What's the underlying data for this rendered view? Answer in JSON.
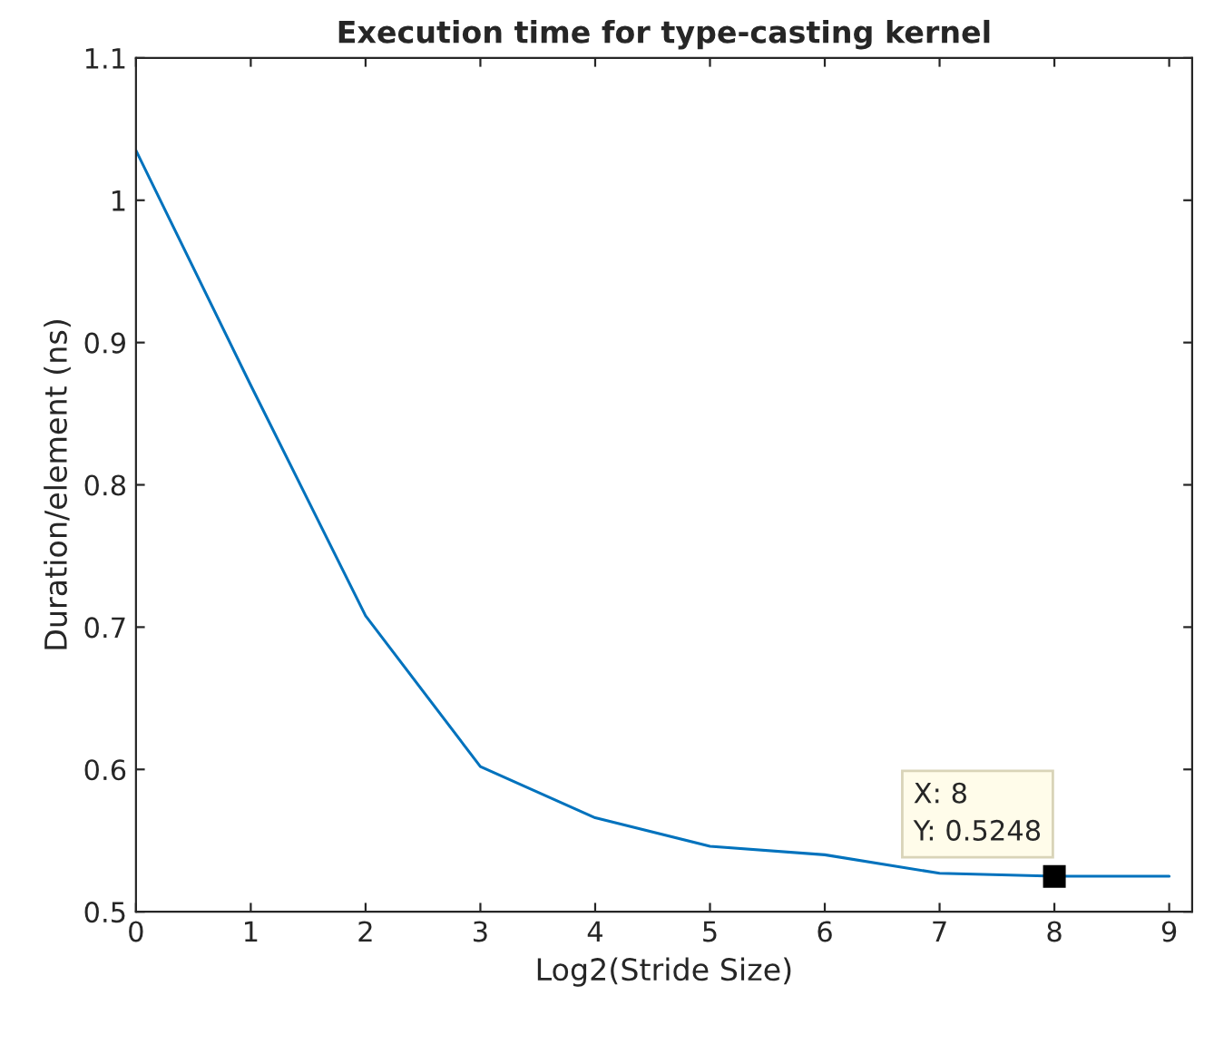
{
  "chart_data": {
    "type": "line",
    "title": "Execution time for type-casting kernel",
    "xlabel": "Log2(Stride Size)",
    "ylabel": "Duration/element (ns)",
    "x": [
      0,
      1,
      2,
      3,
      4,
      5,
      6,
      7,
      8,
      9
    ],
    "series": [
      {
        "color": "#0072bd",
        "values": [
          1.035,
          0.87,
          0.708,
          0.602,
          0.566,
          0.546,
          0.54,
          0.527,
          0.525,
          0.525
        ]
      }
    ],
    "xlim": [
      0,
      9.2
    ],
    "xticks": [
      0,
      1,
      2,
      3,
      4,
      5,
      6,
      7,
      8,
      9
    ],
    "ylim": [
      0.5,
      1.1
    ],
    "yticks": [
      0.5,
      0.6,
      0.7,
      0.8,
      0.9,
      1,
      1.1
    ],
    "grid": false,
    "line_style": "solid",
    "annotations": [
      {
        "text": "X: 8\nY: 0.5248",
        "x": 8,
        "y": 0.5248
      }
    ]
  }
}
